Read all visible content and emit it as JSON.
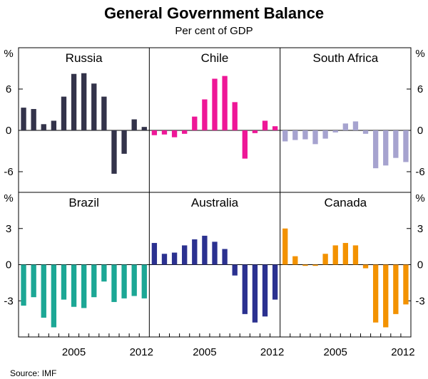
{
  "chart_data": {
    "type": "bar",
    "title": "General Government Balance",
    "subtitle": "Per cent of GDP",
    "source": "Source: IMF",
    "unit": "%",
    "years": [
      2000,
      2001,
      2002,
      2003,
      2004,
      2005,
      2006,
      2007,
      2008,
      2009,
      2010,
      2011,
      2012
    ],
    "x_tick_labels": [
      "2005",
      "2012"
    ],
    "rows": [
      {
        "ylim": [
          -9,
          12
        ],
        "y_ticks": [
          {
            "value": 6,
            "label": "6"
          },
          {
            "value": 0,
            "label": "0"
          },
          {
            "value": -6,
            "label": "-6"
          }
        ],
        "panels": [
          {
            "name": "Russia",
            "color": "#33334a",
            "values": [
              3.3,
              3.1,
              0.9,
              1.4,
              4.9,
              8.2,
              8.3,
              6.8,
              4.9,
              -6.3,
              -3.4,
              1.6,
              0.5
            ]
          },
          {
            "name": "Chile",
            "color": "#ee1797",
            "values": [
              -0.7,
              -0.6,
              -1.0,
              -0.5,
              2.0,
              4.5,
              7.5,
              7.9,
              4.1,
              -4.1,
              -0.4,
              1.4,
              0.6
            ]
          },
          {
            "name": "South Africa",
            "color": "#a6a3cf",
            "values": [
              -1.6,
              -1.4,
              -1.3,
              -2.0,
              -1.2,
              -0.3,
              1.0,
              1.3,
              -0.5,
              -5.5,
              -5.1,
              -4.0,
              -4.6
            ]
          }
        ]
      },
      {
        "ylim": [
          -6,
          6
        ],
        "y_ticks": [
          {
            "value": 3,
            "label": "3"
          },
          {
            "value": 0,
            "label": "0"
          },
          {
            "value": -3,
            "label": "-3"
          }
        ],
        "panels": [
          {
            "name": "Brazil",
            "color": "#1ca795",
            "values": [
              -3.4,
              -2.7,
              -4.4,
              -5.2,
              -2.9,
              -3.5,
              -3.6,
              -2.7,
              -1.4,
              -3.1,
              -2.8,
              -2.6,
              -2.8
            ]
          },
          {
            "name": "Australia",
            "color": "#2b3190",
            "values": [
              1.8,
              0.9,
              1.0,
              1.6,
              2.1,
              2.4,
              1.9,
              1.3,
              -0.9,
              -4.1,
              -4.8,
              -4.3,
              -2.9
            ]
          },
          {
            "name": "Canada",
            "color": "#f39200",
            "values": [
              3.0,
              0.7,
              -0.1,
              -0.1,
              0.9,
              1.6,
              1.8,
              1.6,
              -0.3,
              -4.8,
              -5.2,
              -4.1,
              -3.3
            ]
          }
        ]
      }
    ]
  }
}
